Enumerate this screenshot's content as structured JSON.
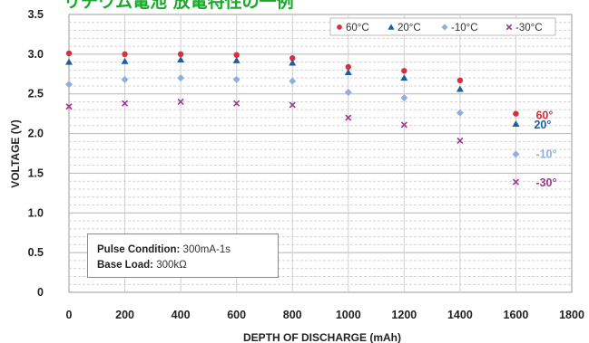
{
  "chart_data": {
    "type": "scatter",
    "title": "リチウム電池 放電特性の一例",
    "xlabel": "DEPTH OF DISCHARGE (mAh)",
    "ylabel": "VOLTAGE (V)",
    "xlim": [
      0,
      1800
    ],
    "ylim": [
      0,
      3.5
    ],
    "x_ticks": [
      "0",
      "200",
      "400",
      "600",
      "800",
      "1000",
      "1200",
      "1400",
      "1600",
      "1800"
    ],
    "y_ticks": [
      "0",
      "0.5",
      "1.0",
      "1.5",
      "2.0",
      "2.5",
      "3.0",
      "3.5"
    ],
    "grid": true,
    "legend_position": "top-right",
    "series": [
      {
        "name": "60°C",
        "marker": "circle",
        "color": "#d7303a",
        "x": [
          0,
          200,
          400,
          600,
          800,
          1000,
          1200,
          1400,
          1600
        ],
        "y": [
          3.01,
          3.0,
          3.0,
          2.99,
          2.95,
          2.84,
          2.79,
          2.67,
          2.25
        ],
        "end_label": "60°"
      },
      {
        "name": "20°C",
        "marker": "triangle",
        "color": "#1d5f9e",
        "x": [
          0,
          200,
          400,
          600,
          800,
          1000,
          1200,
          1400,
          1600
        ],
        "y": [
          2.9,
          2.91,
          2.93,
          2.92,
          2.89,
          2.77,
          2.7,
          2.56,
          2.12
        ],
        "end_label": "20°"
      },
      {
        "name": "-10°C",
        "marker": "diamond",
        "color": "#8fb0dc",
        "x": [
          0,
          200,
          400,
          600,
          800,
          1000,
          1200,
          1400,
          1600
        ],
        "y": [
          2.62,
          2.68,
          2.7,
          2.68,
          2.66,
          2.52,
          2.45,
          2.26,
          1.74
        ],
        "end_label": "-10°"
      },
      {
        "name": "-30°C",
        "marker": "x",
        "color": "#9b3a8e",
        "x": [
          0,
          200,
          400,
          600,
          800,
          1000,
          1200,
          1400,
          1600
        ],
        "y": [
          2.34,
          2.38,
          2.4,
          2.38,
          2.36,
          2.2,
          2.11,
          1.91,
          1.39
        ],
        "end_label": "-30°"
      }
    ],
    "annotation": {
      "line1_label": "Pulse Condition:",
      "line1_value": " 300mA-1s",
      "line2_label": "Base Load:",
      "line2_value": " 300kΩ"
    }
  }
}
